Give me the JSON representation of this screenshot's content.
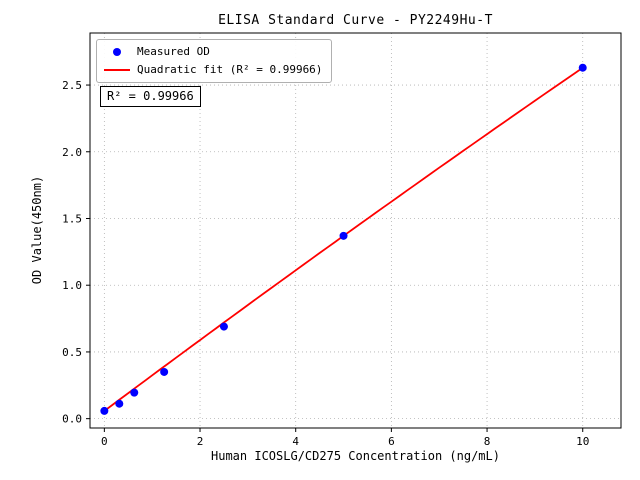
{
  "chart_data": {
    "type": "scatter",
    "title": "ELISA Standard Curve - PY2249Hu-T",
    "xlabel": "Human ICOSLG/CD275 Concentration (ng/mL)",
    "ylabel": "OD Value(450nm)",
    "series": [
      {
        "name": "Measured OD",
        "type": "scatter",
        "color": "#0000ff",
        "points": [
          {
            "x": 0,
            "y": 0.058
          },
          {
            "x": 0.3125,
            "y": 0.112
          },
          {
            "x": 0.625,
            "y": 0.195
          },
          {
            "x": 1.25,
            "y": 0.35
          },
          {
            "x": 2.5,
            "y": 0.69
          },
          {
            "x": 5,
            "y": 1.37
          },
          {
            "x": 10,
            "y": 2.63
          }
        ]
      },
      {
        "name": "Quadratic fit (R² = 0.99966)",
        "type": "line",
        "color": "#ff0000",
        "fit": {
          "a": -0.00104,
          "b": 0.2676,
          "c": 0.058,
          "range": [
            0,
            10
          ]
        }
      }
    ],
    "r_squared": 0.99966,
    "annotation": "R² = 0.99966",
    "xticks": {
      "values": [
        0,
        2,
        4,
        6,
        8,
        10
      ],
      "labels": [
        "0",
        "2",
        "4",
        "6",
        "8",
        "10"
      ]
    },
    "yticks": {
      "values": [
        0,
        0.5,
        1.0,
        1.5,
        2.0,
        2.5
      ],
      "labels": [
        "0.0",
        "0.5",
        "1.0",
        "1.5",
        "2.0",
        "2.5"
      ]
    },
    "layout": {
      "xlim": [
        -0.3,
        10.8
      ],
      "ylim": [
        -0.07,
        2.89
      ],
      "grid": "dotted",
      "legend_position": "upper left"
    },
    "legend": [
      {
        "label": "Measured OD",
        "marker": "dot",
        "color": "#0000ff"
      },
      {
        "label": "Quadratic fit (R² = 0.99966)",
        "marker": "line",
        "color": "#ff0000"
      }
    ]
  }
}
